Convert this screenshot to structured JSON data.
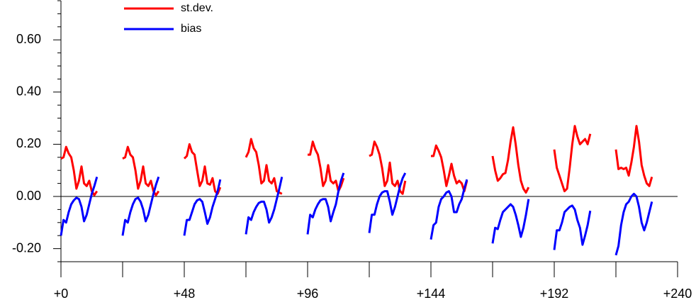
{
  "chart_data": {
    "type": "line",
    "x": [
      0,
      1,
      2,
      3,
      4,
      5,
      6,
      7,
      8,
      9,
      10,
      11,
      12,
      13,
      14,
      15,
      24,
      25,
      26,
      27,
      28,
      29,
      30,
      31,
      32,
      33,
      34,
      35,
      36,
      37,
      38,
      39,
      48,
      49,
      50,
      51,
      52,
      53,
      54,
      55,
      56,
      57,
      58,
      59,
      60,
      61,
      62,
      63,
      72,
      73,
      74,
      75,
      76,
      77,
      78,
      79,
      80,
      81,
      82,
      83,
      84,
      85,
      86,
      87,
      96,
      97,
      98,
      99,
      100,
      101,
      102,
      103,
      104,
      105,
      106,
      107,
      108,
      109,
      110,
      111,
      120,
      121,
      122,
      123,
      124,
      125,
      126,
      127,
      128,
      129,
      130,
      131,
      132,
      133,
      134,
      135,
      144,
      145,
      146,
      147,
      148,
      149,
      150,
      151,
      152,
      153,
      154,
      155,
      156,
      157,
      158,
      159,
      168,
      169,
      170,
      171,
      172,
      173,
      174,
      175,
      176,
      177,
      178,
      179,
      180,
      181,
      182,
      183,
      192,
      193,
      194,
      195,
      196,
      197,
      198,
      199,
      200,
      201,
      202,
      203,
      204,
      205,
      206,
      207,
      216,
      217,
      218,
      219,
      220,
      221,
      222,
      223,
      224,
      225,
      226,
      227,
      228,
      229,
      230
    ],
    "series": [
      {
        "name": "st.dev.",
        "color": "#ff0000",
        "values": [
          0.145,
          0.15,
          0.19,
          0.165,
          0.15,
          0.1,
          0.03,
          0.06,
          0.115,
          0.05,
          0.04,
          0.06,
          0.02,
          0.005,
          0.02,
          null,
          0.145,
          0.15,
          0.19,
          0.16,
          0.15,
          0.1,
          0.03,
          0.06,
          0.115,
          0.05,
          0.04,
          0.06,
          0.02,
          0.005,
          0.02,
          null,
          0.145,
          0.155,
          0.2,
          0.17,
          0.16,
          0.1,
          0.04,
          0.06,
          0.115,
          0.05,
          0.045,
          0.07,
          0.02,
          0.01,
          0.035,
          null,
          0.15,
          0.17,
          0.22,
          0.185,
          0.17,
          0.12,
          0.05,
          0.06,
          0.12,
          0.06,
          0.05,
          0.07,
          0.02,
          0.015,
          0.01,
          null,
          0.16,
          0.16,
          0.21,
          0.18,
          0.16,
          0.11,
          0.04,
          0.06,
          0.12,
          0.06,
          0.05,
          0.06,
          0.02,
          0.04,
          0.07,
          null,
          0.155,
          0.16,
          0.21,
          0.19,
          0.16,
          0.11,
          0.04,
          0.06,
          0.13,
          0.05,
          0.04,
          0.06,
          0.02,
          0.01,
          0.06,
          null,
          0.155,
          0.155,
          0.195,
          0.175,
          0.15,
          0.1,
          0.04,
          0.08,
          0.125,
          0.08,
          0.05,
          0.06,
          0.05,
          0.02,
          0.06,
          null,
          0.155,
          0.1,
          0.06,
          0.07,
          0.085,
          0.09,
          0.14,
          0.21,
          0.265,
          0.2,
          0.12,
          0.06,
          0.03,
          0.015,
          0.035,
          null,
          0.18,
          0.11,
          0.08,
          0.05,
          0.02,
          0.03,
          0.11,
          0.2,
          0.27,
          0.23,
          0.2,
          0.21,
          0.22,
          0.2,
          0.24,
          null,
          0.18,
          0.105,
          0.11,
          0.105,
          0.11,
          0.08,
          0.13,
          0.19,
          0.27,
          0.21,
          0.12,
          0.08,
          0.05,
          0.04,
          0.075
        ]
      },
      {
        "name": "bias",
        "color": "#0000ff",
        "values": [
          -0.15,
          -0.09,
          -0.1,
          -0.06,
          -0.03,
          -0.015,
          -0.005,
          -0.01,
          -0.04,
          -0.095,
          -0.07,
          -0.03,
          0.01,
          0.04,
          0.075,
          null,
          -0.15,
          -0.09,
          -0.1,
          -0.06,
          -0.03,
          -0.01,
          -0.005,
          -0.02,
          -0.05,
          -0.095,
          -0.07,
          -0.03,
          0.01,
          0.045,
          0.075,
          null,
          -0.15,
          -0.09,
          -0.09,
          -0.06,
          -0.03,
          -0.015,
          -0.01,
          -0.02,
          -0.06,
          -0.105,
          -0.08,
          -0.04,
          -0.01,
          0.02,
          0.065,
          null,
          -0.145,
          -0.08,
          -0.09,
          -0.06,
          -0.04,
          -0.025,
          -0.02,
          -0.02,
          -0.05,
          -0.1,
          -0.08,
          -0.05,
          -0.01,
          0.03,
          0.075,
          null,
          -0.145,
          -0.07,
          -0.08,
          -0.05,
          -0.03,
          -0.015,
          -0.01,
          -0.01,
          -0.04,
          -0.095,
          -0.06,
          -0.03,
          0.02,
          0.06,
          0.09,
          null,
          -0.14,
          -0.07,
          -0.07,
          -0.03,
          0,
          0.015,
          0.02,
          0.02,
          -0.02,
          -0.07,
          -0.04,
          0,
          0.04,
          0.07,
          0.09,
          null,
          -0.165,
          -0.11,
          -0.1,
          -0.04,
          -0.01,
          0,
          0.015,
          0.02,
          0,
          -0.06,
          -0.06,
          -0.03,
          -0.01,
          0.03,
          0.065,
          null,
          -0.18,
          -0.12,
          -0.125,
          -0.09,
          -0.06,
          -0.05,
          -0.04,
          -0.03,
          -0.04,
          -0.07,
          -0.11,
          -0.155,
          -0.12,
          -0.07,
          -0.01,
          null,
          -0.205,
          -0.13,
          -0.13,
          -0.1,
          -0.06,
          -0.05,
          -0.04,
          -0.035,
          -0.05,
          -0.09,
          -0.12,
          -0.185,
          -0.15,
          -0.11,
          -0.055,
          null,
          -0.225,
          -0.19,
          -0.11,
          -0.06,
          -0.03,
          -0.02,
          0,
          0.01,
          0,
          -0.04,
          -0.1,
          -0.13,
          -0.1,
          -0.06,
          -0.02
        ]
      }
    ],
    "xlim": [
      0,
      240
    ],
    "xticks": [
      {
        "value": 0,
        "label": "+0"
      },
      {
        "value": 48,
        "label": "+48"
      },
      {
        "value": 96,
        "label": "+96"
      },
      {
        "value": 144,
        "label": "+144"
      },
      {
        "value": 192,
        "label": "+192"
      },
      {
        "value": 240,
        "label": "+240"
      }
    ],
    "xminorticks": [
      24,
      72,
      120,
      168,
      216
    ],
    "ylim": [
      -0.25,
      0.75
    ],
    "yticks": [
      {
        "value": -0.2,
        "label": "-0.20"
      },
      {
        "value": 0,
        "label": "0.00"
      },
      {
        "value": 0.2,
        "label": "0.20"
      },
      {
        "value": 0.4,
        "label": "0.40"
      },
      {
        "value": 0.6,
        "label": "0.60"
      }
    ],
    "yminorticks": [
      -0.25,
      -0.15,
      -0.1,
      -0.05,
      0.05,
      0.1,
      0.15,
      0.25,
      0.3,
      0.35,
      0.45,
      0.5,
      0.55,
      0.65,
      0.7,
      0.75
    ],
    "reference_line": 0,
    "legend": "upper left"
  }
}
